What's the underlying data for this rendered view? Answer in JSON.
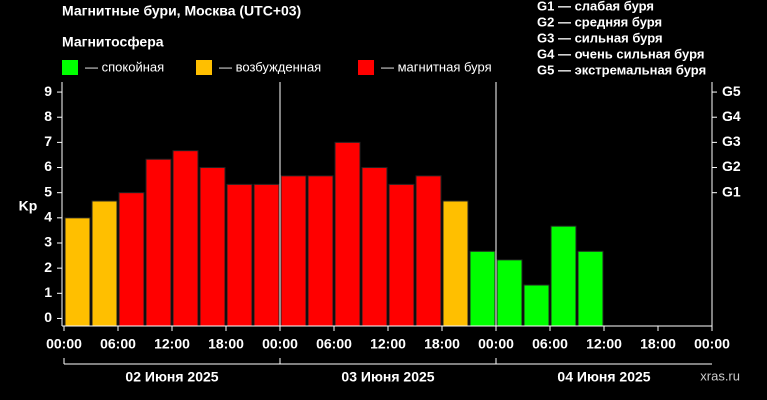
{
  "chart_data": {
    "type": "bar",
    "title": "Магнитные бури, Москва (UTC+03)",
    "subtitle": "Магнитосфера",
    "y_label": "Kp",
    "watermark": "xras.ru",
    "legend": [
      {
        "name": "— спокойная",
        "color": "#00ff00"
      },
      {
        "name": "— возбужденная",
        "color": "#ffbf00"
      },
      {
        "name": "— магнитная буря",
        "color": "#ff0000"
      }
    ],
    "scale_notes": [
      "G1 — слабая буря",
      "G2 — средняя буря",
      "G3 — сильная буря",
      "G4 — очень сильная буря",
      "G5 — экстремальная буря"
    ],
    "x": [
      0,
      3,
      6,
      9,
      12,
      15,
      18,
      21,
      24,
      27,
      30,
      33,
      36,
      39,
      42,
      45,
      48,
      51,
      54,
      57,
      60,
      63,
      66,
      69
    ],
    "values": [
      4.0,
      4.67,
      5.0,
      6.33,
      6.67,
      6.0,
      5.33,
      5.33,
      5.67,
      5.67,
      7.0,
      6.0,
      5.33,
      5.67,
      4.67,
      2.67,
      2.33,
      1.33,
      3.67,
      2.67,
      null,
      null,
      null,
      null
    ],
    "colors": [
      "#ffbf00",
      "#ffbf00",
      "#ff0000",
      "#ff0000",
      "#ff0000",
      "#ff0000",
      "#ff0000",
      "#ff0000",
      "#ff0000",
      "#ff0000",
      "#ff0000",
      "#ff0000",
      "#ff0000",
      "#ff0000",
      "#ffbf00",
      "#00ff00",
      "#00ff00",
      "#00ff00",
      "#00ff00",
      "#00ff00",
      null,
      null,
      null,
      null
    ],
    "xlim": [
      0,
      72
    ],
    "xticks": [
      {
        "value": 0,
        "label": "00:00"
      },
      {
        "value": 6,
        "label": "06:00"
      },
      {
        "value": 12,
        "label": "12:00"
      },
      {
        "value": 18,
        "label": "18:00"
      },
      {
        "value": 24,
        "label": "00:00"
      },
      {
        "value": 30,
        "label": "06:00"
      },
      {
        "value": 36,
        "label": "12:00"
      },
      {
        "value": 42,
        "label": "18:00"
      },
      {
        "value": 48,
        "label": "00:00"
      },
      {
        "value": 54,
        "label": "06:00"
      },
      {
        "value": 60,
        "label": "12:00"
      },
      {
        "value": 66,
        "label": "18:00"
      },
      {
        "value": 72,
        "label": "00:00"
      }
    ],
    "x_groups": [
      "02 Июня 2025",
      "03 Июня 2025",
      "04 Июня 2025"
    ],
    "ylim": [
      -0.3,
      9.4
    ],
    "yticks": [
      0,
      1,
      2,
      3,
      4,
      5,
      6,
      7,
      8,
      9
    ],
    "y2lim": [
      -0.3,
      9.4
    ],
    "y2ticks": [
      {
        "value": 5,
        "label": "G1"
      },
      {
        "value": 6,
        "label": "G2"
      },
      {
        "value": 7,
        "label": "G3"
      },
      {
        "value": 8,
        "label": "G4"
      },
      {
        "value": 9,
        "label": "G5"
      }
    ]
  }
}
